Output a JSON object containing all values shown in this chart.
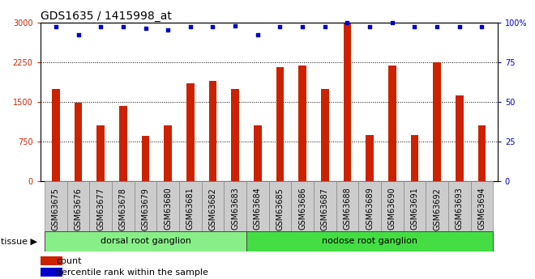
{
  "title": "GDS1635 / 1415998_at",
  "categories": [
    "GSM63675",
    "GSM63676",
    "GSM63677",
    "GSM63678",
    "GSM63679",
    "GSM63680",
    "GSM63681",
    "GSM63682",
    "GSM63683",
    "GSM63684",
    "GSM63685",
    "GSM63686",
    "GSM63687",
    "GSM63688",
    "GSM63689",
    "GSM63690",
    "GSM63691",
    "GSM63692",
    "GSM63693",
    "GSM63694"
  ],
  "counts": [
    1750,
    1480,
    1050,
    1420,
    860,
    1050,
    1850,
    1900,
    1750,
    1050,
    2150,
    2180,
    1750,
    2980,
    870,
    2180,
    870,
    2250,
    1620,
    1050
  ],
  "percentiles": [
    97,
    92,
    97,
    97,
    96,
    95,
    97,
    97,
    98,
    92,
    97,
    97,
    97,
    100,
    97,
    100,
    97,
    97,
    97,
    97
  ],
  "ylim_left": [
    0,
    3000
  ],
  "ylim_right": [
    0,
    100
  ],
  "yticks_left": [
    0,
    750,
    1500,
    2250,
    3000
  ],
  "yticks_right": [
    0,
    25,
    50,
    75,
    100
  ],
  "bar_color": "#cc2200",
  "dot_color": "#0000cc",
  "tissue_groups": [
    {
      "label": "dorsal root ganglion",
      "start": 0,
      "end": 9,
      "color": "#88ee88"
    },
    {
      "label": "nodose root ganglion",
      "start": 9,
      "end": 20,
      "color": "#44dd44"
    }
  ],
  "tissue_label": "tissue",
  "legend_count_label": "count",
  "legend_pct_label": "percentile rank within the sample",
  "xtick_bg": "#cccccc",
  "plot_bg": "#ffffff",
  "grid_color": "#000000",
  "title_fontsize": 10,
  "tick_fontsize": 7,
  "bar_width": 0.35
}
